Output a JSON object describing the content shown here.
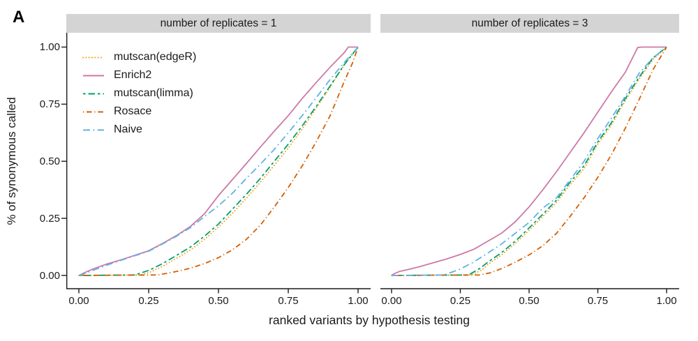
{
  "figure_label": "A",
  "colors": {
    "strip_background": "#d4d4d4",
    "axis": "#1a1a1a",
    "text": "#1a1a1a"
  },
  "axes": {
    "x_title": "ranked variants by hypothesis testing",
    "y_title": "% of synonymous called",
    "x_tick_labels": [
      "0.00",
      "0.25",
      "0.50",
      "0.75",
      "1.00"
    ],
    "y_tick_labels": [
      "0.00",
      "0.25",
      "0.50",
      "0.75",
      "1.00"
    ],
    "x_tick_values": [
      0,
      0.25,
      0.5,
      0.75,
      1
    ],
    "y_tick_values": [
      0,
      0.25,
      0.5,
      0.75,
      1
    ]
  },
  "chart_data": {
    "type": "line",
    "x_range": [
      0,
      1
    ],
    "y_range": [
      0,
      1
    ],
    "grid": "off",
    "legend_position": "top-left-inside-first-panel",
    "xlabel": "ranked variants by hypothesis testing",
    "ylabel": "% of synonymous called",
    "series_styles": [
      {
        "name": "mutscan(edgeR)",
        "color": "#E69F00",
        "dash": "0.1 4.2",
        "cap": "round"
      },
      {
        "name": "Enrich2",
        "color": "#CC79A7",
        "dash": "",
        "cap": "butt"
      },
      {
        "name": "mutscan(limma)",
        "color": "#009E73",
        "dash": "3.5 4 9.5 4",
        "cap": "butt"
      },
      {
        "name": "Rosace",
        "color": "#D55E00",
        "dash": "1.2 3.8 7.5 3.8",
        "cap": "butt"
      },
      {
        "name": "Naive",
        "color": "#5EB3E4",
        "dash": "10 4.5 1.8 4.5",
        "cap": "butt"
      }
    ],
    "panels": [
      {
        "title": "number of replicates = 1",
        "series": {
          "mutscan(edgeR)": [
            [
              0,
              0
            ],
            [
              0.22,
              0.002
            ],
            [
              0.25,
              0.012
            ],
            [
              0.3,
              0.04
            ],
            [
              0.35,
              0.075
            ],
            [
              0.4,
              0.112
            ],
            [
              0.45,
              0.158
            ],
            [
              0.5,
              0.212
            ],
            [
              0.55,
              0.272
            ],
            [
              0.6,
              0.338
            ],
            [
              0.65,
              0.408
            ],
            [
              0.7,
              0.482
            ],
            [
              0.75,
              0.558
            ],
            [
              0.8,
              0.642
            ],
            [
              0.85,
              0.732
            ],
            [
              0.9,
              0.825
            ],
            [
              0.95,
              0.92
            ],
            [
              1,
              1
            ]
          ],
          "Enrich2": [
            [
              0,
              0
            ],
            [
              0.02,
              0.012
            ],
            [
              0.05,
              0.028
            ],
            [
              0.1,
              0.05
            ],
            [
              0.15,
              0.068
            ],
            [
              0.2,
              0.088
            ],
            [
              0.25,
              0.108
            ],
            [
              0.3,
              0.14
            ],
            [
              0.35,
              0.175
            ],
            [
              0.4,
              0.215
            ],
            [
              0.45,
              0.27
            ],
            [
              0.5,
              0.35
            ],
            [
              0.55,
              0.42
            ],
            [
              0.6,
              0.49
            ],
            [
              0.65,
              0.562
            ],
            [
              0.7,
              0.632
            ],
            [
              0.75,
              0.7
            ],
            [
              0.8,
              0.775
            ],
            [
              0.85,
              0.845
            ],
            [
              0.9,
              0.912
            ],
            [
              0.95,
              0.975
            ],
            [
              0.965,
              1.0
            ],
            [
              1,
              1
            ]
          ],
          "mutscan(limma)": [
            [
              0,
              0
            ],
            [
              0.2,
              0.002
            ],
            [
              0.25,
              0.022
            ],
            [
              0.3,
              0.052
            ],
            [
              0.35,
              0.088
            ],
            [
              0.4,
              0.125
            ],
            [
              0.45,
              0.172
            ],
            [
              0.5,
              0.225
            ],
            [
              0.55,
              0.29
            ],
            [
              0.6,
              0.355
            ],
            [
              0.65,
              0.425
            ],
            [
              0.7,
              0.5
            ],
            [
              0.75,
              0.575
            ],
            [
              0.8,
              0.655
            ],
            [
              0.85,
              0.74
            ],
            [
              0.9,
              0.83
            ],
            [
              0.95,
              0.922
            ],
            [
              1,
              1
            ]
          ],
          "Rosace": [
            [
              0,
              0
            ],
            [
              0.28,
              0.002
            ],
            [
              0.32,
              0.01
            ],
            [
              0.36,
              0.02
            ],
            [
              0.4,
              0.032
            ],
            [
              0.45,
              0.052
            ],
            [
              0.5,
              0.078
            ],
            [
              0.55,
              0.112
            ],
            [
              0.6,
              0.158
            ],
            [
              0.65,
              0.22
            ],
            [
              0.7,
              0.3
            ],
            [
              0.75,
              0.385
            ],
            [
              0.8,
              0.48
            ],
            [
              0.85,
              0.585
            ],
            [
              0.9,
              0.7
            ],
            [
              0.95,
              0.848
            ],
            [
              0.98,
              0.93
            ],
            [
              1,
              1
            ]
          ],
          "Naive": [
            [
              0,
              0
            ],
            [
              0.02,
              0.008
            ],
            [
              0.05,
              0.022
            ],
            [
              0.1,
              0.045
            ],
            [
              0.15,
              0.066
            ],
            [
              0.2,
              0.086
            ],
            [
              0.25,
              0.106
            ],
            [
              0.3,
              0.138
            ],
            [
              0.35,
              0.172
            ],
            [
              0.4,
              0.21
            ],
            [
              0.45,
              0.258
            ],
            [
              0.5,
              0.305
            ],
            [
              0.55,
              0.36
            ],
            [
              0.6,
              0.425
            ],
            [
              0.65,
              0.487
            ],
            [
              0.7,
              0.552
            ],
            [
              0.75,
              0.625
            ],
            [
              0.8,
              0.7
            ],
            [
              0.85,
              0.778
            ],
            [
              0.9,
              0.858
            ],
            [
              0.95,
              0.932
            ],
            [
              1,
              1
            ]
          ]
        }
      },
      {
        "title": "number of replicates = 3",
        "series": {
          "mutscan(edgeR)": [
            [
              0,
              0
            ],
            [
              0.29,
              0.002
            ],
            [
              0.33,
              0.025
            ],
            [
              0.35,
              0.048
            ],
            [
              0.4,
              0.09
            ],
            [
              0.45,
              0.14
            ],
            [
              0.5,
              0.198
            ],
            [
              0.55,
              0.258
            ],
            [
              0.6,
              0.32
            ],
            [
              0.65,
              0.398
            ],
            [
              0.7,
              0.468
            ],
            [
              0.75,
              0.575
            ],
            [
              0.8,
              0.66
            ],
            [
              0.85,
              0.765
            ],
            [
              0.9,
              0.86
            ],
            [
              0.95,
              0.945
            ],
            [
              1,
              1
            ]
          ],
          "Enrich2": [
            [
              0,
              0
            ],
            [
              0.01,
              0.008
            ],
            [
              0.03,
              0.018
            ],
            [
              0.06,
              0.026
            ],
            [
              0.1,
              0.038
            ],
            [
              0.15,
              0.055
            ],
            [
              0.2,
              0.072
            ],
            [
              0.25,
              0.092
            ],
            [
              0.3,
              0.115
            ],
            [
              0.35,
              0.15
            ],
            [
              0.4,
              0.185
            ],
            [
              0.45,
              0.235
            ],
            [
              0.5,
              0.3
            ],
            [
              0.55,
              0.375
            ],
            [
              0.6,
              0.455
            ],
            [
              0.65,
              0.54
            ],
            [
              0.7,
              0.625
            ],
            [
              0.75,
              0.715
            ],
            [
              0.8,
              0.805
            ],
            [
              0.85,
              0.89
            ],
            [
              0.895,
              0.998
            ],
            [
              0.91,
              1.0
            ],
            [
              1,
              1
            ]
          ],
          "mutscan(limma)": [
            [
              0,
              0
            ],
            [
              0.28,
              0.002
            ],
            [
              0.32,
              0.03
            ],
            [
              0.35,
              0.058
            ],
            [
              0.4,
              0.1
            ],
            [
              0.45,
              0.15
            ],
            [
              0.5,
              0.208
            ],
            [
              0.55,
              0.268
            ],
            [
              0.6,
              0.33
            ],
            [
              0.65,
              0.41
            ],
            [
              0.7,
              0.48
            ],
            [
              0.75,
              0.585
            ],
            [
              0.8,
              0.67
            ],
            [
              0.85,
              0.775
            ],
            [
              0.9,
              0.868
            ],
            [
              0.95,
              0.952
            ],
            [
              1,
              1
            ]
          ],
          "Rosace": [
            [
              0,
              0
            ],
            [
              0.32,
              0.002
            ],
            [
              0.36,
              0.012
            ],
            [
              0.4,
              0.03
            ],
            [
              0.45,
              0.058
            ],
            [
              0.5,
              0.09
            ],
            [
              0.55,
              0.13
            ],
            [
              0.6,
              0.185
            ],
            [
              0.65,
              0.26
            ],
            [
              0.7,
              0.34
            ],
            [
              0.75,
              0.43
            ],
            [
              0.8,
              0.53
            ],
            [
              0.85,
              0.645
            ],
            [
              0.9,
              0.77
            ],
            [
              0.95,
              0.9
            ],
            [
              1,
              1
            ]
          ],
          "Naive": [
            [
              0,
              0
            ],
            [
              0.19,
              0.002
            ],
            [
              0.22,
              0.015
            ],
            [
              0.25,
              0.028
            ],
            [
              0.3,
              0.06
            ],
            [
              0.35,
              0.098
            ],
            [
              0.4,
              0.138
            ],
            [
              0.45,
              0.185
            ],
            [
              0.5,
              0.232
            ],
            [
              0.55,
              0.295
            ],
            [
              0.6,
              0.34
            ],
            [
              0.65,
              0.42
            ],
            [
              0.7,
              0.5
            ],
            [
              0.75,
              0.6
            ],
            [
              0.8,
              0.69
            ],
            [
              0.85,
              0.785
            ],
            [
              0.9,
              0.885
            ],
            [
              0.95,
              0.952
            ],
            [
              1,
              1
            ]
          ]
        }
      }
    ]
  }
}
